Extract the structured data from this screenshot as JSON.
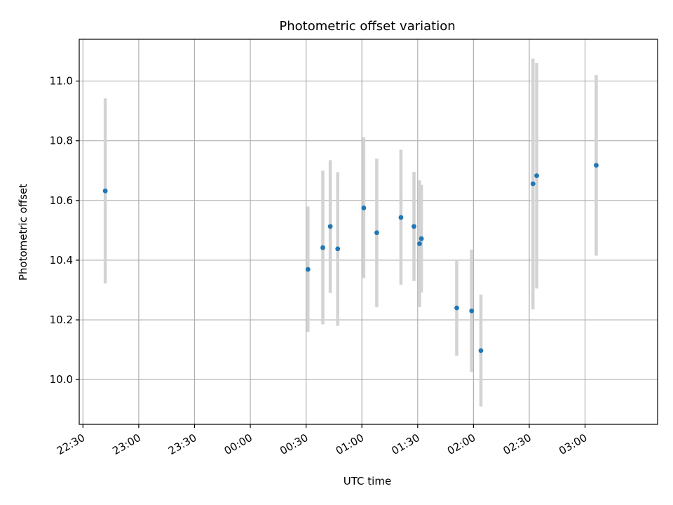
{
  "chart_data": {
    "type": "scatter",
    "title": "Photometric offset variation",
    "xlabel": "UTC time",
    "ylabel": "Photometric offset",
    "x_unit": "UTC time (HH:MM)",
    "xlim": [
      "22:28",
      "03:39"
    ],
    "ylim": [
      9.85,
      11.14
    ],
    "grid": true,
    "colors": {
      "marker": "#1f77b4",
      "errorbar": "#d3d3d3",
      "grid": "#b0b0b0"
    },
    "x_ticks": [
      "22:30",
      "23:00",
      "23:30",
      "00:00",
      "00:30",
      "01:00",
      "01:30",
      "02:00",
      "02:30",
      "03:00"
    ],
    "y_ticks": [
      10.0,
      10.2,
      10.4,
      10.6,
      10.8,
      11.0
    ],
    "y_tick_labels": [
      "10.0",
      "10.2",
      "10.4",
      "10.6",
      "10.8",
      "11.0"
    ],
    "series": [
      {
        "points": [
          {
            "x": "22:42",
            "y": 10.632,
            "low": 10.322,
            "high": 10.942
          },
          {
            "x": "00:31",
            "y": 10.369,
            "low": 10.16,
            "high": 10.58
          },
          {
            "x": "00:39",
            "y": 10.442,
            "low": 10.185,
            "high": 10.7
          },
          {
            "x": "00:43",
            "y": 10.513,
            "low": 10.29,
            "high": 10.735
          },
          {
            "x": "00:47",
            "y": 10.438,
            "low": 10.18,
            "high": 10.695
          },
          {
            "x": "01:01",
            "y": 10.575,
            "low": 10.34,
            "high": 10.812
          },
          {
            "x": "01:08",
            "y": 10.492,
            "low": 10.242,
            "high": 10.74
          },
          {
            "x": "01:21",
            "y": 10.543,
            "low": 10.318,
            "high": 10.77
          },
          {
            "x": "01:28",
            "y": 10.513,
            "low": 10.33,
            "high": 10.696
          },
          {
            "x": "01:31",
            "y": 10.455,
            "low": 10.243,
            "high": 10.667
          },
          {
            "x": "01:32",
            "y": 10.472,
            "low": 10.292,
            "high": 10.652
          },
          {
            "x": "01:51",
            "y": 10.24,
            "low": 10.08,
            "high": 10.4
          },
          {
            "x": "01:59",
            "y": 10.23,
            "low": 10.025,
            "high": 10.435
          },
          {
            "x": "02:04",
            "y": 10.097,
            "low": 9.91,
            "high": 10.285
          },
          {
            "x": "02:32",
            "y": 10.656,
            "low": 10.235,
            "high": 11.075
          },
          {
            "x": "02:34",
            "y": 10.683,
            "low": 10.305,
            "high": 11.06
          },
          {
            "x": "03:06",
            "y": 10.718,
            "low": 10.415,
            "high": 11.02
          }
        ]
      }
    ]
  }
}
